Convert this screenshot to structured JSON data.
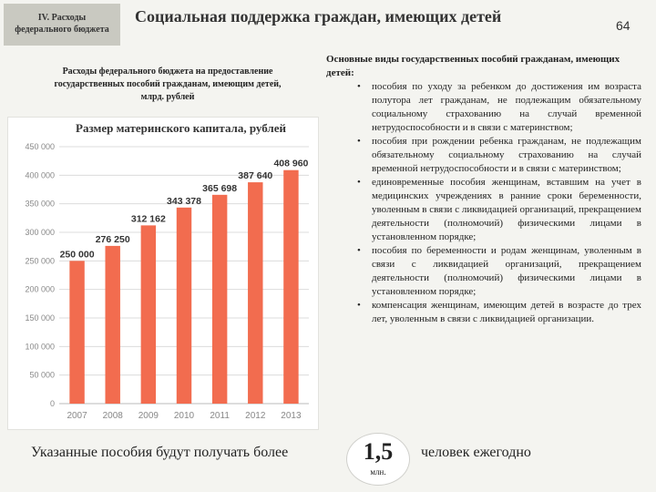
{
  "section_tag": [
    "IV. Расходы",
    "федерального бюджета"
  ],
  "slide_title": "Социальная поддержка граждан, имеющих детей",
  "slide_number": "64",
  "left_subtitle": [
    "Расходы федерального бюджета на предоставление",
    "государственных пособий гражданам, имеющим детей,",
    "млрд. рублей"
  ],
  "chart_data": {
    "type": "bar",
    "title": "Размер материнского капитала, рублей",
    "categories": [
      "2007",
      "2008",
      "2009",
      "2010",
      "2011",
      "2012",
      "2013"
    ],
    "values": [
      250000,
      276250,
      312162,
      343378,
      365698,
      387640,
      408960
    ],
    "value_labels": [
      "250 000",
      "276 250",
      "312 162",
      "343 378",
      "365 698",
      "387 640",
      "408 960"
    ],
    "ylim": [
      0,
      450000
    ],
    "yticks": [
      0,
      50000,
      100000,
      150000,
      200000,
      250000,
      300000,
      350000,
      400000,
      450000
    ],
    "ytick_labels": [
      "0",
      "50 000",
      "100 000",
      "150 000",
      "200 000",
      "250 000",
      "300 000",
      "350 000",
      "400 000",
      "450 000"
    ],
    "grid": true,
    "bar_color": "#f26c4f"
  },
  "right_heading": "Основные виды государственных пособий гражданам, имеющих детей:",
  "right_items": [
    "пособия по уходу за ребенком до достижения им возраста полутора лет гражданам, не подлежащим обязательному социальному страхованию на случай временной нетрудоспособности и в связи с материнством;",
    "пособия при рождении ребенка гражданам, не подлежащим обязательному социальному страхованию на случай временной нетрудоспособности и в связи с материнством;",
    "единовременные пособия женщинам, вставшим на учет в медицинских учреждениях в ранние сроки беременности, уволенным в связи с ликвидацией организаций, прекращением деятельности (полномочий) физическими лицами в установленном порядке;",
    "пособия по беременности и родам женщинам, уволенным в связи с ликвидацией организаций, прекращением деятельности (полномочий) физическими лицами в установленном порядке;",
    "компенсация женщинам, имеющим детей в возрасте до трех лет, уволенным в связи с ликвидацией организации."
  ],
  "bullet_symbol": "•",
  "footer": {
    "left_text": "Указанные пособия будут получать более",
    "number": "1,5",
    "unit": "млн.",
    "right_text": "человек ежегодно"
  }
}
